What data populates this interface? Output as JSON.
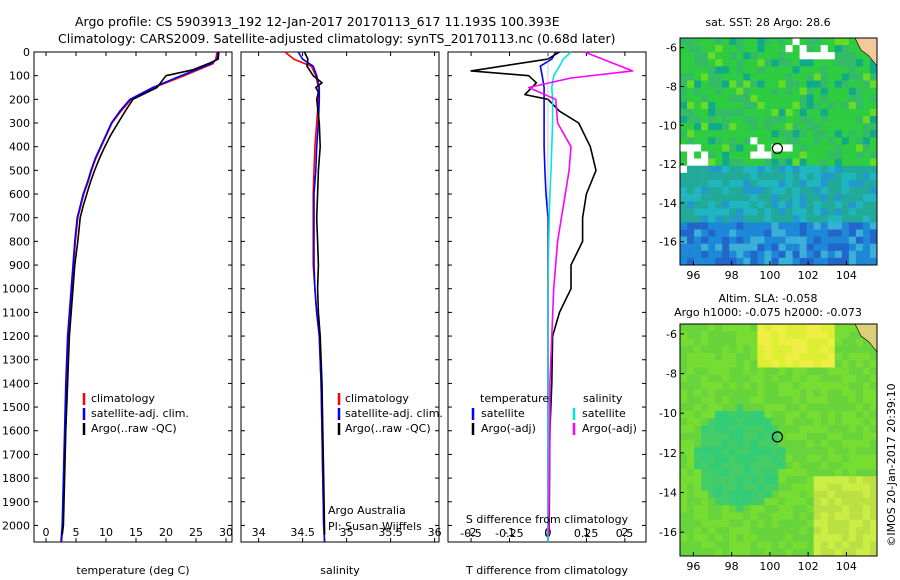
{
  "header": {
    "line1": "Argo profile: CS 5903913_192 12-Jan-2017 20170113_617 11.193S 100.393E",
    "line2": "Climatology: CARS2009. Satellite-adjusted climatology: synTS_20170113.nc (0.68d later)"
  },
  "depth_ticks": [
    "0",
    "100",
    "200",
    "300",
    "400",
    "500",
    "600",
    "700",
    "800",
    "900",
    "1000",
    "1100",
    "1200",
    "1300",
    "1400",
    "1500",
    "1600",
    "1700",
    "1800",
    "1900",
    "2000"
  ],
  "panels": {
    "temperature": {
      "xlabel": "temperature (deg C)",
      "xticks": [
        "0",
        "5",
        "10",
        "15",
        "20",
        "25",
        "30"
      ],
      "legend": [
        "climatology",
        "satellite-adj. clim.",
        "Argo(..raw -QC)"
      ]
    },
    "salinity": {
      "xlabel": "salinity",
      "xticks": [
        "34",
        "34.5",
        "35",
        "35.5",
        "36"
      ],
      "legend": [
        "climatology",
        "satellite-adj. clim.",
        "Argo(..raw -QC)"
      ],
      "note1": "Argo Australia",
      "note2": "PI: Susan Wijffels"
    },
    "difference": {
      "xlabel": "T difference from climatology",
      "xlabel_top": "S difference from climatology",
      "xticks_bottom": [
        "-2",
        "-1",
        "0",
        "1",
        "2"
      ],
      "xticks_top": [
        "-0.5",
        "-0.25",
        "0",
        "0.25",
        "0.5"
      ],
      "legend_t_title": "temperature",
      "legend_s_title": "salinity",
      "legend_t": [
        "satellite",
        "Argo(-adj)"
      ],
      "legend_s": [
        "satellite",
        "Argo(-adj)"
      ]
    }
  },
  "maps": {
    "sst_title": "sat. SST: 28 Argo: 28.6",
    "sla_title1": "Altim. SLA: -0.058",
    "sla_title2": "Argo h1000: -0.075 h2000: -0.073",
    "lat_ticks": [
      "-6",
      "-8",
      "-10",
      "-12",
      "-14",
      "-16"
    ],
    "lon_ticks": [
      "96",
      "98",
      "100",
      "102",
      "104"
    ]
  },
  "side_label": "©IMOS 20-Jan-2017 20:39:10",
  "colors": {
    "climatology": "#ff0000",
    "satellite": "#0000ff",
    "argo": "#000000",
    "sal_satellite": "#00e5e5",
    "sal_argo": "#ff00ff"
  },
  "chart_data": [
    {
      "type": "line",
      "title": "",
      "xlabel": "temperature (deg C)",
      "ylabel": "",
      "xlim": [
        -2,
        31
      ],
      "ylim": [
        2070,
        0
      ],
      "series": [
        {
          "name": "climatology",
          "x": [
            28.5,
            28.3,
            27.8,
            23,
            18,
            14.2,
            12.5,
            11,
            10.1,
            9.2,
            8.3,
            7.6,
            7.0,
            6.3,
            5.8,
            5.3,
            4.9,
            4.6,
            4.3,
            4.0,
            3.7,
            3.4,
            3.2,
            3.0,
            2.8,
            2.6
          ],
          "y": [
            0,
            30,
            50,
            100,
            150,
            200,
            250,
            300,
            350,
            400,
            450,
            500,
            550,
            600,
            650,
            700,
            800,
            900,
            1000,
            1100,
            1200,
            1400,
            1600,
            1800,
            2000,
            2070
          ]
        },
        {
          "name": "satellite-adj. clim.",
          "x": [
            28.7,
            28.5,
            27.5,
            22.5,
            17.8,
            14.0,
            12.3,
            10.9,
            10.0,
            9.1,
            8.2,
            7.5,
            6.9,
            6.2,
            5.7,
            5.2,
            4.8,
            4.5,
            4.2,
            3.9,
            3.6,
            3.3,
            3.1,
            2.9,
            2.7,
            2.5
          ],
          "y": [
            0,
            30,
            50,
            100,
            150,
            200,
            250,
            300,
            350,
            400,
            450,
            500,
            550,
            600,
            650,
            700,
            800,
            900,
            1000,
            1100,
            1200,
            1400,
            1600,
            1800,
            2000,
            2070
          ]
        },
        {
          "name": "Argo(..raw -QC)",
          "x": [
            28.8,
            28.7,
            27.0,
            24.5,
            20.0,
            18.5,
            14.5,
            13.2,
            12.0,
            10.8,
            9.8,
            8.9,
            8.1,
            7.4,
            6.8,
            6.2,
            5.7,
            5.3,
            4.8,
            4.5,
            4.2,
            3.9,
            3.6,
            3.3,
            3.1,
            2.9,
            2.7
          ],
          "y": [
            0,
            30,
            50,
            75,
            100,
            150,
            200,
            250,
            300,
            350,
            400,
            450,
            500,
            550,
            600,
            650,
            700,
            800,
            900,
            1000,
            1100,
            1200,
            1400,
            1600,
            1800,
            2000,
            2040
          ]
        }
      ]
    },
    {
      "type": "line",
      "title": "",
      "xlabel": "salinity",
      "ylabel": "",
      "xlim": [
        33.8,
        36.05
      ],
      "ylim": [
        2070,
        0
      ],
      "series": [
        {
          "name": "climatology",
          "x": [
            34.3,
            34.4,
            34.6,
            34.65,
            34.68,
            34.68,
            34.66,
            34.64,
            34.63,
            34.62,
            34.62,
            34.62,
            34.62,
            34.64,
            34.66,
            34.69,
            34.71,
            34.72,
            34.73,
            34.74,
            34.75
          ],
          "y": [
            0,
            30,
            60,
            100,
            150,
            200,
            300,
            400,
            500,
            600,
            700,
            800,
            900,
            1000,
            1100,
            1200,
            1400,
            1600,
            1800,
            2000,
            2070
          ]
        },
        {
          "name": "satellite-adj. clim.",
          "x": [
            34.45,
            34.5,
            34.62,
            34.66,
            34.69,
            34.69,
            34.68,
            34.66,
            34.65,
            34.63,
            34.63,
            34.63,
            34.63,
            34.64,
            34.66,
            34.69,
            34.71,
            34.72,
            34.73,
            34.74,
            34.75
          ],
          "y": [
            0,
            30,
            60,
            100,
            150,
            200,
            300,
            400,
            500,
            600,
            700,
            800,
            900,
            1000,
            1100,
            1200,
            1400,
            1600,
            1800,
            2000,
            2070
          ]
        },
        {
          "name": "Argo(..raw -QC)",
          "x": [
            34.52,
            34.56,
            34.55,
            34.62,
            34.72,
            34.65,
            34.68,
            34.66,
            34.69,
            34.7,
            34.68,
            34.67,
            34.66,
            34.67,
            34.68,
            34.67,
            34.68,
            34.7,
            34.72,
            34.73,
            34.74,
            34.75
          ],
          "y": [
            0,
            30,
            60,
            100,
            130,
            150,
            170,
            200,
            300,
            400,
            500,
            600,
            700,
            800,
            900,
            1000,
            1100,
            1200,
            1400,
            1600,
            1800,
            2040
          ]
        }
      ]
    },
    {
      "type": "line",
      "title": "",
      "xlabel": "T difference from climatology",
      "ylabel": "",
      "xlim": [
        -2.6,
        2.55
      ],
      "ylim": [
        2070,
        0
      ],
      "series": [
        {
          "name": "T satellite",
          "x": [
            0.2,
            0.1,
            -0.2,
            -0.15,
            -0.1,
            -0.1,
            -0.1,
            -0.1,
            -0.08,
            -0.05,
            0,
            0,
            0,
            0,
            0,
            0,
            0,
            0
          ],
          "y": [
            0,
            30,
            60,
            100,
            150,
            200,
            300,
            400,
            500,
            600,
            700,
            800,
            1000,
            1200,
            1400,
            1600,
            1800,
            2070
          ]
        },
        {
          "name": "T Argo(-adj)",
          "x": [
            0.3,
            0.0,
            -2.0,
            -0.5,
            -0.3,
            -0.6,
            0.0,
            0.3,
            0.8,
            1.1,
            1.25,
            1.0,
            0.9,
            0.9,
            0.6,
            0.6,
            0.3,
            0.12,
            0.1,
            0.05,
            0.03
          ],
          "y": [
            0,
            30,
            80,
            100,
            130,
            180,
            200,
            250,
            300,
            400,
            500,
            600,
            700,
            800,
            900,
            1000,
            1100,
            1200,
            1400,
            1600,
            2040
          ]
        },
        {
          "name": "S satellite",
          "x": [
            0.6,
            0.4,
            0.3,
            0.15,
            0.1,
            0.12,
            0.12,
            0.1,
            0.08,
            0.05,
            0.02,
            0,
            0,
            0
          ],
          "y": [
            0,
            30,
            60,
            100,
            150,
            200,
            300,
            400,
            500,
            600,
            800,
            1000,
            1400,
            2070
          ]
        },
        {
          "name": "S Argo(-adj)",
          "x": [
            0.95,
            2.2,
            0.6,
            -0.5,
            0.2,
            0.25,
            0.6,
            0.55,
            0.45,
            0.35,
            0.25,
            0.15,
            0.1,
            0.05,
            0.05,
            0.02
          ],
          "y": [
            0,
            80,
            110,
            150,
            200,
            300,
            400,
            500,
            600,
            700,
            800,
            1000,
            1200,
            1400,
            1600,
            2040
          ]
        }
      ]
    }
  ]
}
